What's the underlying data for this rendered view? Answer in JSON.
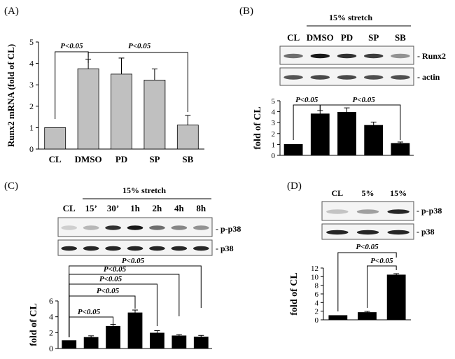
{
  "chart_data": [
    {
      "panel": "(A)",
      "type": "bar",
      "ylabel": "Runx2 mRNA (fold of CL)",
      "categories": [
        "CL",
        "DMSO",
        "PD",
        "SP",
        "SB"
      ],
      "values": [
        1.0,
        3.75,
        3.5,
        3.22,
        1.12
      ],
      "errors": [
        0.0,
        0.45,
        0.75,
        0.52,
        0.45
      ],
      "ylim": [
        0,
        5
      ],
      "yticks": [
        "0",
        "1",
        "2",
        "3",
        "4",
        "5"
      ],
      "bar_color": "#c0c0c0",
      "annotations": [
        "P<0.05",
        "P<0.05"
      ]
    },
    {
      "panel": "(B)",
      "type": "bar",
      "header": "15% stretch",
      "lanes": [
        "CL",
        "DMSO",
        "PD",
        "SP",
        "SB"
      ],
      "blots": [
        "Runx2",
        "actin"
      ],
      "ylabel": "fold of CL",
      "categories": [
        "CL",
        "DMSO",
        "PD",
        "SP",
        "SB"
      ],
      "values": [
        1.0,
        3.8,
        3.95,
        2.75,
        1.1
      ],
      "errors": [
        0.0,
        0.3,
        0.4,
        0.3,
        0.12
      ],
      "ylim": [
        0,
        5
      ],
      "yticks": [
        "0",
        "1",
        "2",
        "3",
        "4",
        "5"
      ],
      "bar_color": "#000000",
      "annotations": [
        "P<0.05",
        "P<0.05"
      ]
    },
    {
      "panel": "(C)",
      "type": "bar",
      "header": "15% stretch",
      "lanes": [
        "CL",
        "15’",
        "30’",
        "1h",
        "2h",
        "4h",
        "8h"
      ],
      "blots": [
        "p-p38",
        "p38"
      ],
      "ylabel": "fold of CL",
      "categories": [
        "CL",
        "15’",
        "30’",
        "1h",
        "2h",
        "4h",
        "8h"
      ],
      "values": [
        1.0,
        1.4,
        2.8,
        4.5,
        1.95,
        1.6,
        1.45
      ],
      "errors": [
        0.0,
        0.2,
        0.25,
        0.35,
        0.3,
        0.15,
        0.2
      ],
      "ylim": [
        0,
        6
      ],
      "yticks": [
        "0",
        "2",
        "4",
        "6"
      ],
      "bar_color": "#000000",
      "annotations": [
        "P<0.05",
        "P<0.05",
        "P<0.05",
        "P<0.05",
        "P<0.05"
      ]
    },
    {
      "panel": "(D)",
      "type": "bar",
      "lanes": [
        "CL",
        "5%",
        "15%"
      ],
      "blots": [
        "p-p38",
        "p38"
      ],
      "ylabel": "fold of CL",
      "categories": [
        "CL",
        "5%",
        "15%"
      ],
      "values": [
        1.0,
        1.7,
        10.4
      ],
      "errors": [
        0.0,
        0.25,
        0.3
      ],
      "ylim": [
        0,
        12
      ],
      "yticks": [
        "0",
        "2",
        "4",
        "6",
        "8",
        "10",
        "12"
      ],
      "bar_color": "#000000",
      "annotations": [
        "P<0.05",
        "P<0.05"
      ]
    }
  ]
}
